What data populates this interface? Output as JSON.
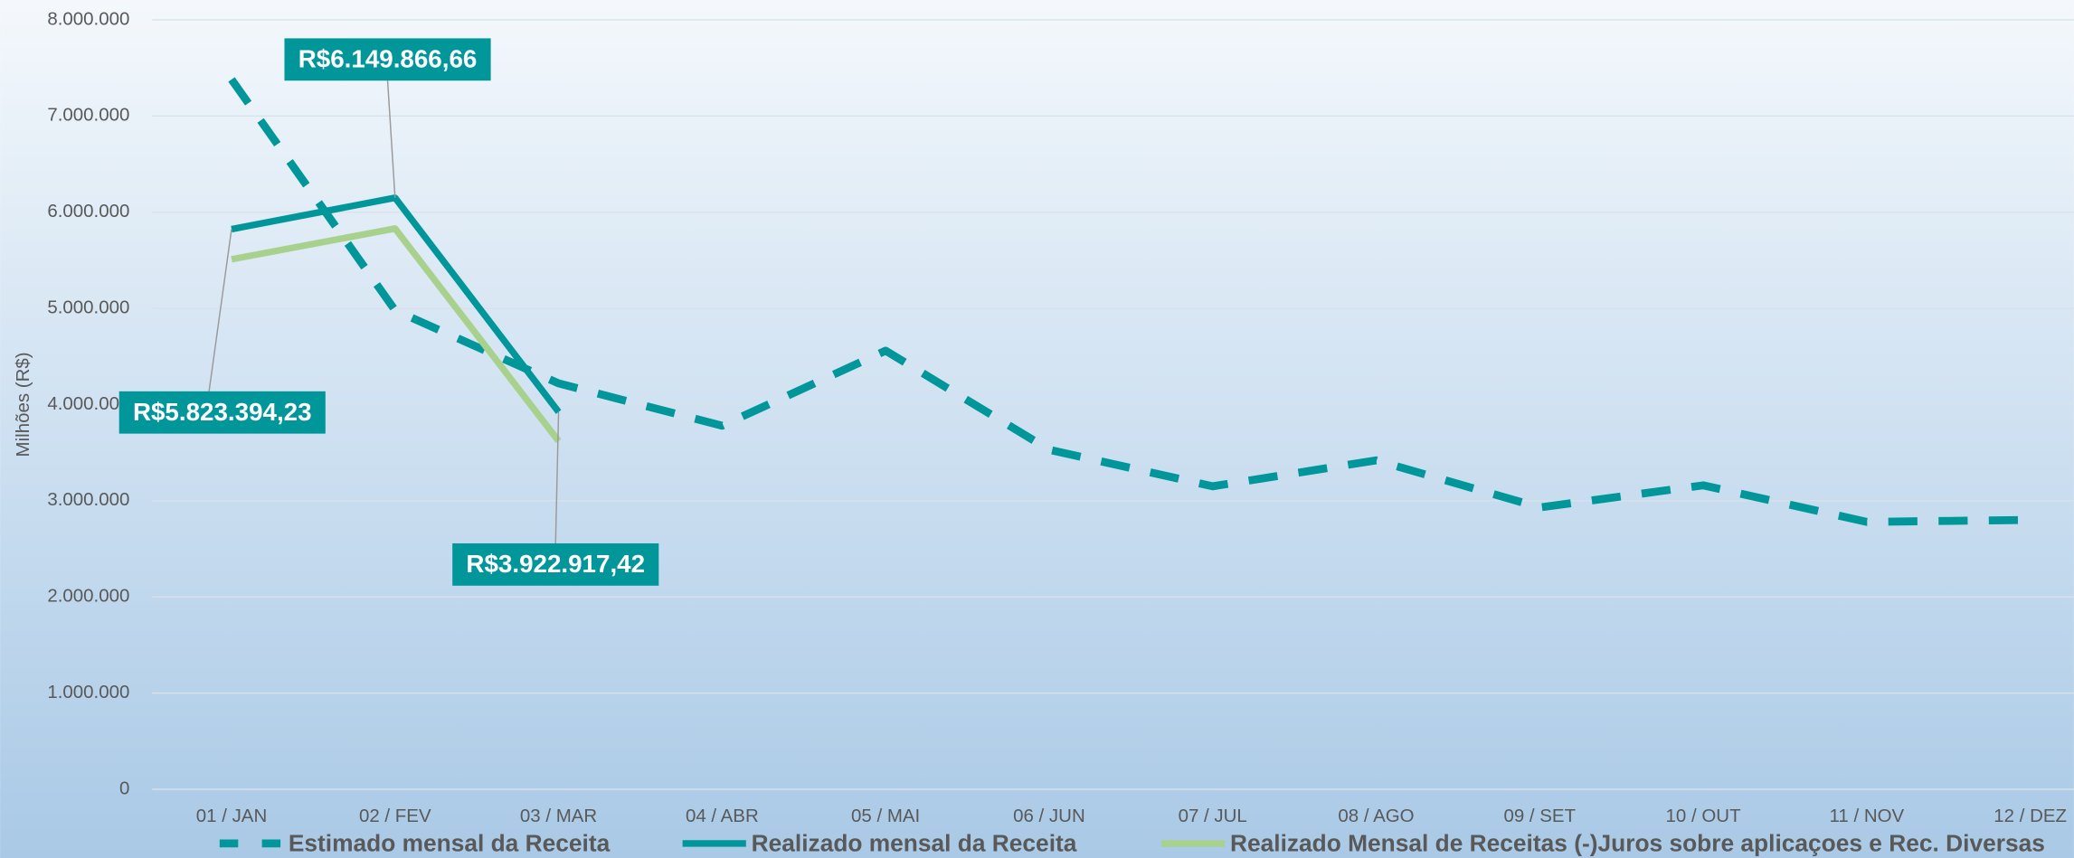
{
  "chart_data": {
    "type": "line",
    "y_label": "Milhões (R$)",
    "categories": [
      "01 / JAN",
      "02 / FEV",
      "03 / MAR",
      "04 / ABR",
      "05 / MAI",
      "06 / JUN",
      "07 / JUL",
      "08 / AGO",
      "09 / SET",
      "10 / OUT",
      "11 / NOV",
      "12 / DEZ"
    ],
    "series": [
      {
        "name": "Estimado mensal da Receita",
        "color": "#00969a",
        "dash": true,
        "values": [
          7380000,
          4980000,
          4220000,
          3780000,
          4560000,
          3530000,
          3150000,
          3420000,
          2930000,
          3160000,
          2780000,
          2800000
        ]
      },
      {
        "name": "Realizado mensal da  Receita",
        "color": "#00969a",
        "dash": false,
        "values": [
          5823394.23,
          6149866.66,
          3922917.42,
          null,
          null,
          null,
          null,
          null,
          null,
          null,
          null,
          null
        ],
        "value_labels": [
          "R$5.823.394,23",
          "R$6.149.866,66",
          "R$3.922.917,42",
          null,
          null,
          null,
          null,
          null,
          null,
          null,
          null,
          null
        ]
      },
      {
        "name": "Realizado Mensal de Receitas (-)Juros sobre aplicaçoes e Rec. Diversas",
        "color": "#a9d18e",
        "dash": false,
        "values": [
          5510000,
          5830000,
          3620000,
          null,
          null,
          null,
          null,
          null,
          null,
          null,
          null,
          null
        ]
      }
    ],
    "ylim": [
      0,
      8000000
    ],
    "yticks": [
      0,
      {
        "value": 1000000,
        "label": "1.000.000"
      },
      {
        "value": 2000000,
        "label": "2.000.000"
      },
      {
        "value": 3000000,
        "label": "3.000.000"
      },
      {
        "value": 4000000,
        "label": "4.000.000"
      },
      {
        "value": 5000000,
        "label": "5.000.000"
      },
      {
        "value": 6000000,
        "label": "6.000.000"
      },
      {
        "value": 7000000,
        "label": "7.000.000"
      },
      {
        "value": 8000000,
        "label": "8.000.000"
      }
    ],
    "grid": true
  }
}
